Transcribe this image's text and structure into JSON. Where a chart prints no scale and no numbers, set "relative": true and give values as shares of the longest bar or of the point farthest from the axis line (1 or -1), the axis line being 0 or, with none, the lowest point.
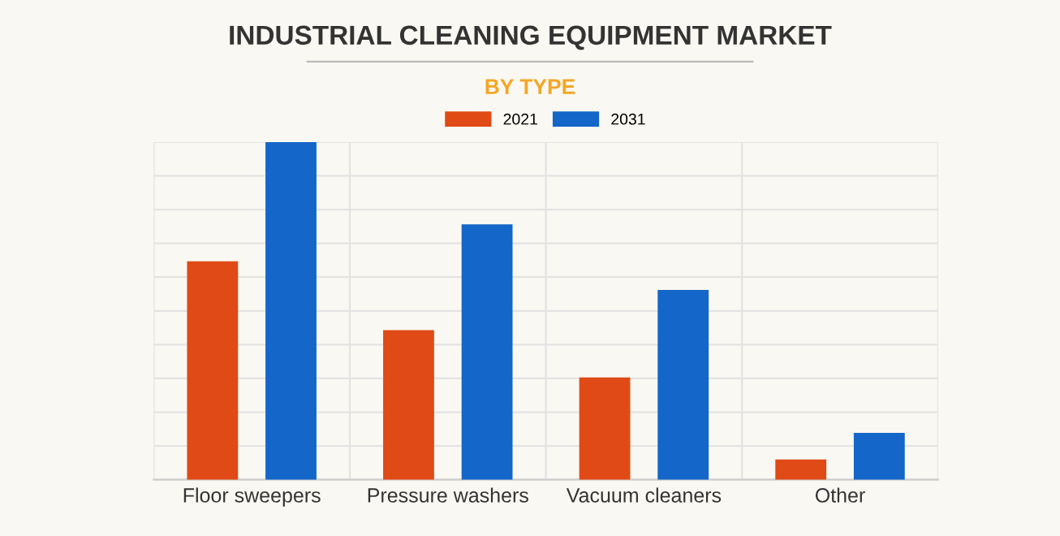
{
  "chart_data": {
    "type": "bar",
    "title": "INDUSTRIAL CLEANING EQUIPMENT MARKET",
    "subtitle": "BY TYPE",
    "categories": [
      "Floor sweepers",
      "Pressure washers",
      "Vacuum cleaners",
      "Other"
    ],
    "series": [
      {
        "name": "2021",
        "color": "#e04a16",
        "values": [
          0.647,
          0.443,
          0.303,
          0.06
        ]
      },
      {
        "name": "2031",
        "color": "#1466c8",
        "values": [
          1,
          0.756,
          0.562,
          0.139
        ]
      }
    ],
    "relative": true,
    "grid": true,
    "legend": "top"
  }
}
